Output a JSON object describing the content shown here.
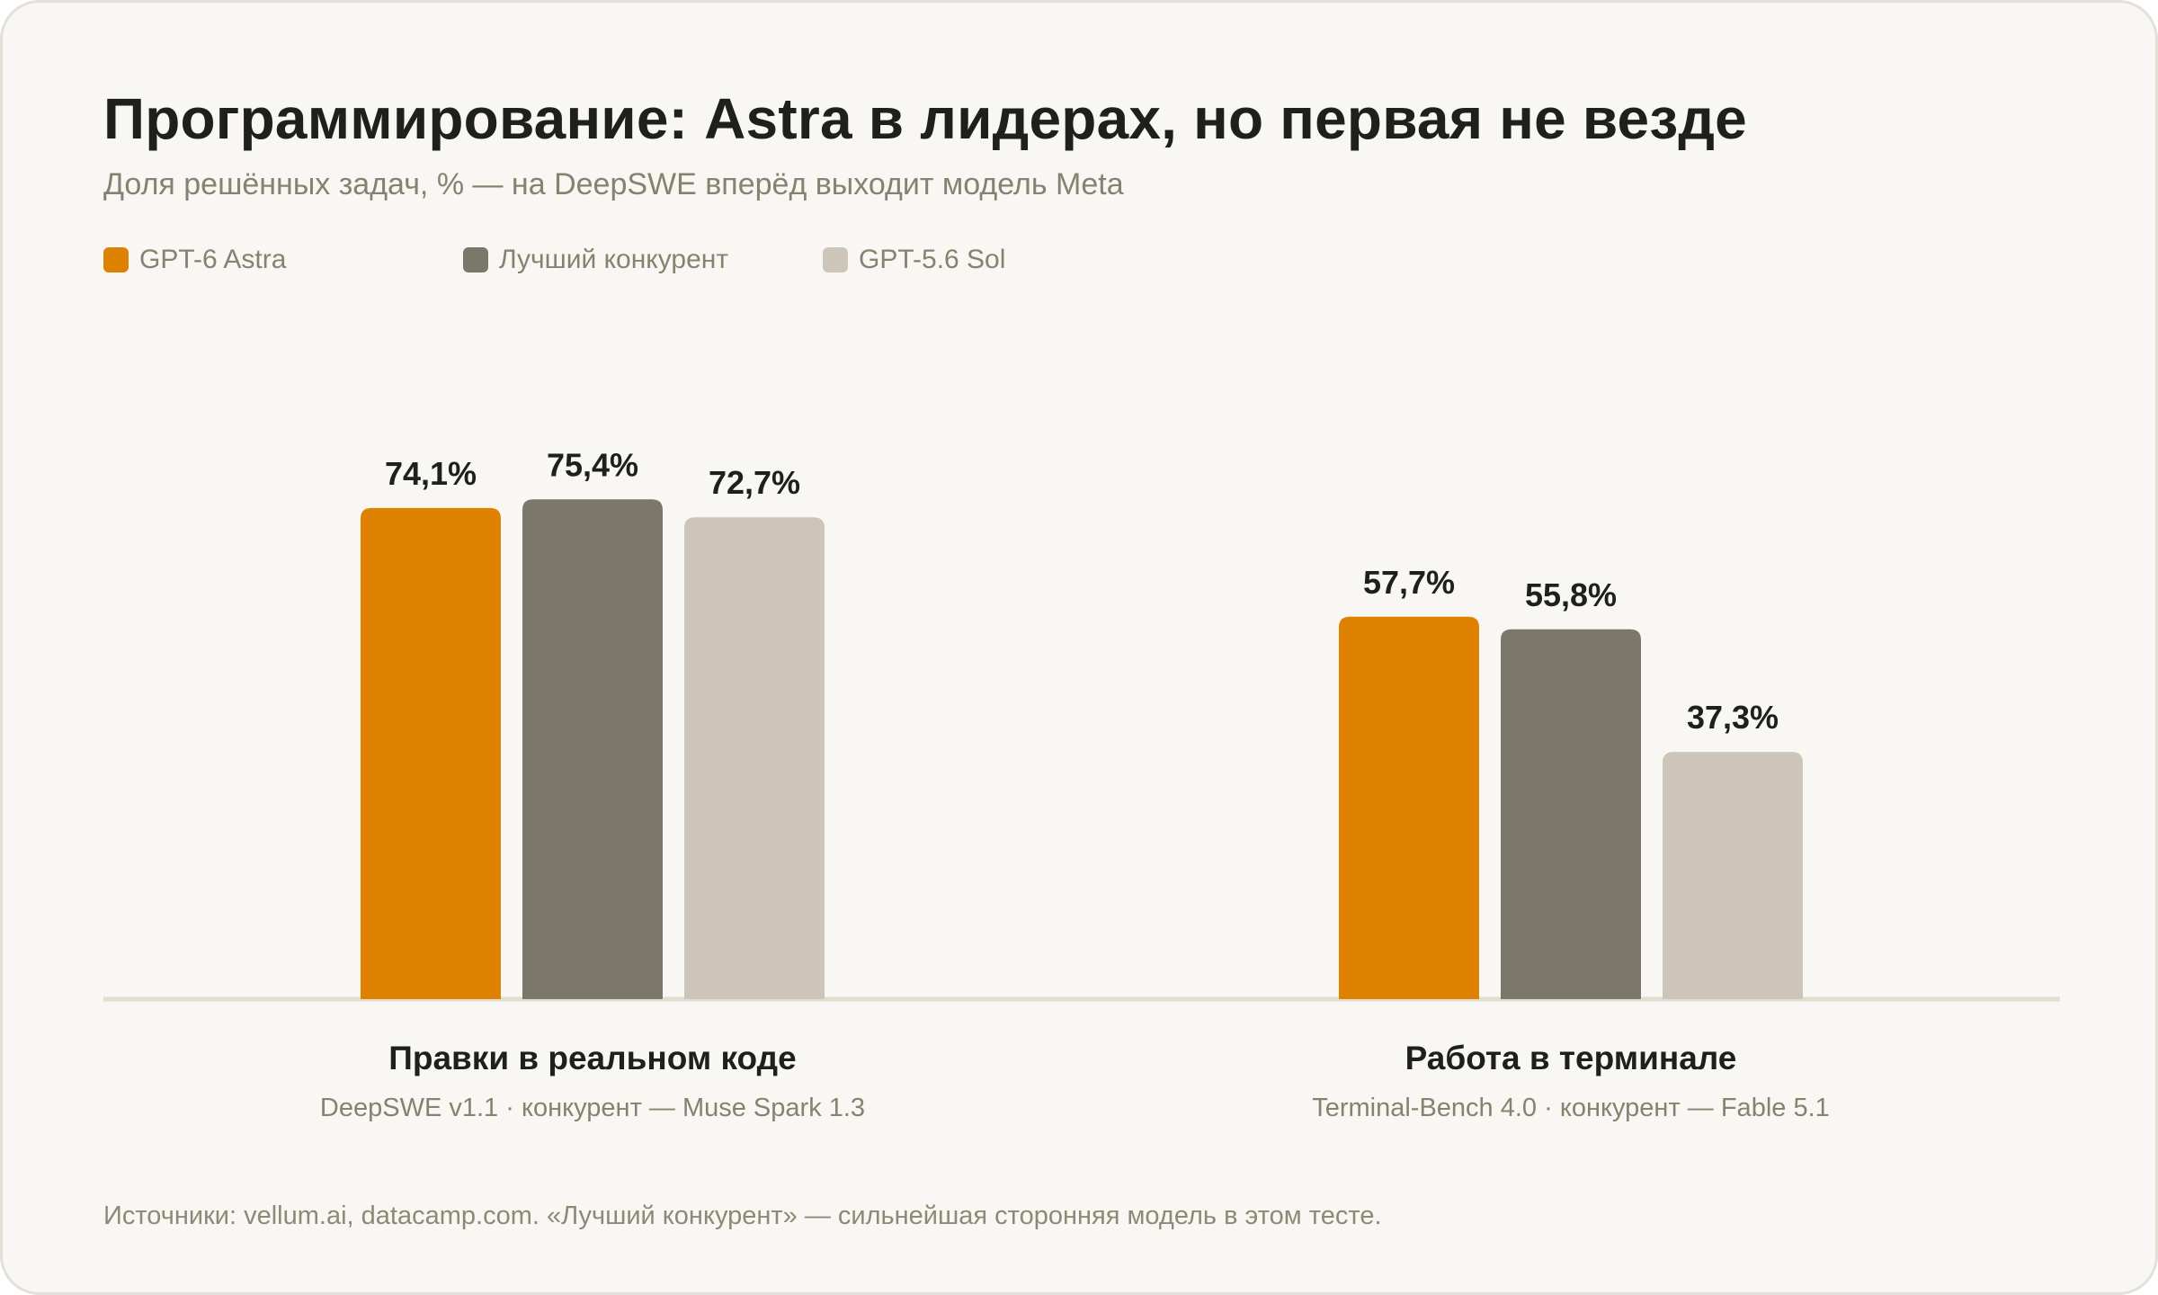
{
  "title": "Программирование: Astra в лидерах, но первая не везде",
  "subtitle": "Доля решённых задач, % — на DeepSWE вперёд выходит модель Meta",
  "footer": "Источники: vellum.ai, datacamp.com. «Лучший конкурент» — сильнейшая сторонняя модель в этом тесте.",
  "colors": {
    "astra": "#de8100",
    "competitor": "#7b786a",
    "sol": "#ccc5b8",
    "baseline": "#e2ded2",
    "value_label": "#1f1f1d",
    "group_title": "#1f1f1d",
    "group_subtitle": "#86826f"
  },
  "chart_data": {
    "type": "bar",
    "title": "Программирование: Astra в лидерах, но первая не везде",
    "subtitle": "Доля решённых задач, % — на DeepSWE вперёд выходит модель Meta",
    "legend_position": "top-left",
    "grid": false,
    "ylim": [
      0,
      100
    ],
    "categories": [
      {
        "label": "Правки в реальном коде",
        "sublabel": "DeepSWE v1.1 · конкурент — Muse Spark 1.3"
      },
      {
        "label": "Работа в терминале",
        "sublabel": "Terminal-Bench 4.0 · конкурент — Fable 5.1"
      }
    ],
    "series": [
      {
        "name": "GPT-6 Astra",
        "color": "#de8100",
        "values": [
          74.1,
          57.7
        ],
        "labels": [
          "74,1%",
          "57,7%"
        ]
      },
      {
        "name": "Лучший конкурент",
        "color": "#7b786a",
        "values": [
          75.4,
          55.8
        ],
        "labels": [
          "75,4%",
          "55,8%"
        ]
      },
      {
        "name": "GPT-5.6 Sol",
        "color": "#ccc5b8",
        "values": [
          72.7,
          37.3
        ],
        "labels": [
          "72,7%",
          "37,3%"
        ]
      }
    ]
  }
}
